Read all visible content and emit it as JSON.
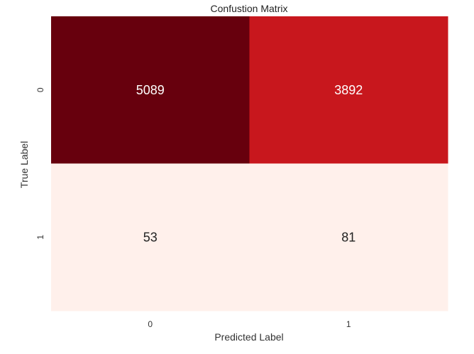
{
  "chart_data": {
    "type": "heatmap",
    "title": "Confustion Matrix",
    "xlabel": "Predicted Label",
    "ylabel": "True Label",
    "x_categories": [
      "0",
      "1"
    ],
    "y_categories": [
      "0",
      "1"
    ],
    "values": [
      [
        5089,
        3892
      ],
      [
        53,
        81
      ]
    ],
    "colormap": "Reds",
    "colorbar": false,
    "grid": false,
    "colors": {
      "r00": "#67000d",
      "r01": "#c8171d",
      "r10": "#fff0eb",
      "r11": "#fff0eb",
      "text_dark_bg": "#ffffff",
      "text_light_bg": "#222222"
    }
  }
}
